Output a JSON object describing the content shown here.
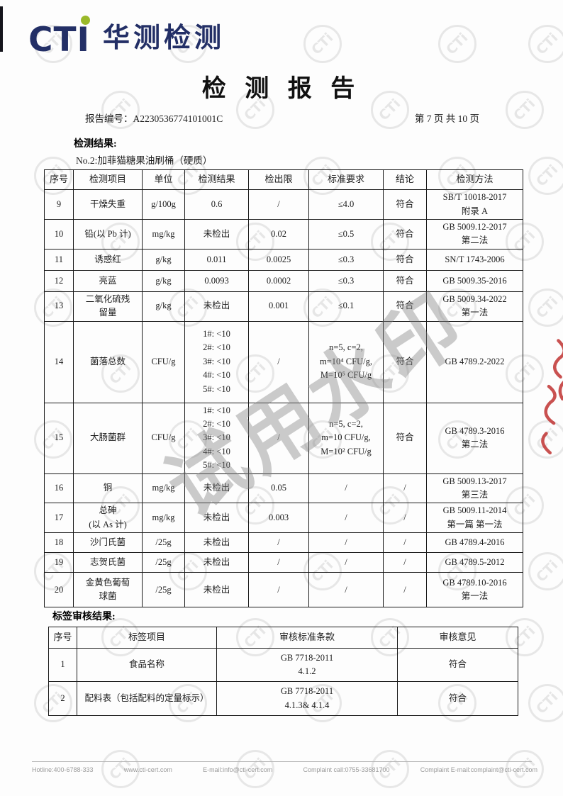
{
  "header": {
    "logo": {
      "text_latin": "CTI",
      "company_cn": "华测检测"
    },
    "title": "检 测 报 告",
    "report_no_label": "报告编号：",
    "report_no": "A2230536774101001C",
    "page_info": "第 7 页 共 10 页"
  },
  "results_section": {
    "heading": "检测结果:",
    "sample_line": "No.2:加菲猫糖果油刷桶（硬质）",
    "table": {
      "headers": [
        "序号",
        "检测项目",
        "单位",
        "检测结果",
        "检出限",
        "标准要求",
        "结论",
        "检测方法"
      ],
      "rows": [
        {
          "no": "9",
          "item": [
            "干燥失重"
          ],
          "unit": "g/100g",
          "result": [
            "0.6"
          ],
          "limit": "/",
          "req": [
            "≤4.0"
          ],
          "concl": "符合",
          "method": [
            "SB/T 10018-2017",
            "附录 A"
          ]
        },
        {
          "no": "10",
          "item": [
            "铅(以 Pb 计)"
          ],
          "unit": "mg/kg",
          "result": [
            "未检出"
          ],
          "limit": "0.02",
          "req": [
            "≤0.5"
          ],
          "concl": "符合",
          "method": [
            "GB 5009.12-2017",
            "第二法"
          ]
        },
        {
          "no": "11",
          "item": [
            "诱惑红"
          ],
          "unit": "g/kg",
          "result": [
            "0.011"
          ],
          "limit": "0.0025",
          "req": [
            "≤0.3"
          ],
          "concl": "符合",
          "method": [
            "SN/T 1743-2006"
          ]
        },
        {
          "no": "12",
          "item": [
            "亮蓝"
          ],
          "unit": "g/kg",
          "result": [
            "0.0093"
          ],
          "limit": "0.0002",
          "req": [
            "≤0.3"
          ],
          "concl": "符合",
          "method": [
            "GB 5009.35-2016"
          ]
        },
        {
          "no": "13",
          "item": [
            "二氧化硫残",
            "留量"
          ],
          "unit": "g/kg",
          "result": [
            "未检出"
          ],
          "limit": "0.001",
          "req": [
            "≤0.1"
          ],
          "concl": "符合",
          "method": [
            "GB 5009.34-2022",
            "第一法"
          ]
        },
        {
          "no": "14",
          "item": [
            "菌落总数"
          ],
          "unit": "CFU/g",
          "result": [
            "1#: <10",
            "2#: <10",
            "3#: <10",
            "4#: <10",
            "5#: <10"
          ],
          "limit": "/",
          "req": [
            "n=5, c=2,",
            "m=10⁴ CFU/g,",
            "M=10⁵ CFU/g"
          ],
          "concl": "符合",
          "method": [
            "GB 4789.2-2022"
          ]
        },
        {
          "no": "15",
          "item": [
            "大肠菌群"
          ],
          "unit": "CFU/g",
          "result": [
            "1#: <10",
            "2#: <10",
            "3#: <10",
            "4#: <10",
            "5#: <10"
          ],
          "limit": "/",
          "req": [
            "n=5, c=2,",
            "m=10 CFU/g,",
            "M=10² CFU/g"
          ],
          "concl": "符合",
          "method": [
            "GB 4789.3-2016",
            "第二法"
          ]
        },
        {
          "no": "16",
          "item": [
            "铜"
          ],
          "unit": "mg/kg",
          "result": [
            "未检出"
          ],
          "limit": "0.05",
          "req": [
            "/"
          ],
          "concl": "/",
          "method": [
            "GB 5009.13-2017",
            "第三法"
          ]
        },
        {
          "no": "17",
          "item": [
            "总砷",
            "(以 As 计)"
          ],
          "unit": "mg/kg",
          "result": [
            "未检出"
          ],
          "limit": "0.003",
          "req": [
            "/"
          ],
          "concl": "/",
          "method": [
            "GB 5009.11-2014",
            "第一篇 第一法"
          ]
        },
        {
          "no": "18",
          "item": [
            "沙门氏菌"
          ],
          "unit": "/25g",
          "result": [
            "未检出"
          ],
          "limit": "/",
          "req": [
            "/"
          ],
          "concl": "/",
          "method": [
            "GB 4789.4-2016"
          ]
        },
        {
          "no": "19",
          "item": [
            "志贺氏菌"
          ],
          "unit": "/25g",
          "result": [
            "未检出"
          ],
          "limit": "/",
          "req": [
            "/"
          ],
          "concl": "/",
          "method": [
            "GB 4789.5-2012"
          ]
        },
        {
          "no": "20",
          "item": [
            "金黄色葡萄",
            "球菌"
          ],
          "unit": "/25g",
          "result": [
            "未检出"
          ],
          "limit": "/",
          "req": [
            "/"
          ],
          "concl": "/",
          "method": [
            "GB 4789.10-2016",
            "第一法"
          ]
        }
      ]
    }
  },
  "label_section": {
    "heading": "标签审核结果:",
    "table": {
      "headers": [
        "序号",
        "标签项目",
        "审核标准条款",
        "审核意见"
      ],
      "rows": [
        {
          "no": "1",
          "item": "食品名称",
          "clause": [
            "GB 7718-2011",
            "4.1.2"
          ],
          "opinion": "符合"
        },
        {
          "no": "2",
          "item": "配料表（包括配料的定量标示）",
          "clause": [
            "GB 7718-2011",
            "4.1.3& 4.1.4"
          ],
          "opinion": "符合"
        }
      ]
    }
  },
  "watermarks": {
    "stamp_text": "CTi",
    "diagonal_text": "试用水印"
  },
  "footer": {
    "items": [
      "Hotline:400-6788-333",
      "www.cti-cert.com",
      "E-mail:info@cti-cert.com",
      "Complaint call:0755-33681700",
      "Complaint E-mail:complaint@cti-cert.com"
    ]
  },
  "colors": {
    "brand_navy": "#232f66",
    "brand_green": "#9ab929",
    "stamp_red": "#c23a39",
    "watermark_gray": "#828282",
    "footer_gray": "#9b9b9b"
  }
}
